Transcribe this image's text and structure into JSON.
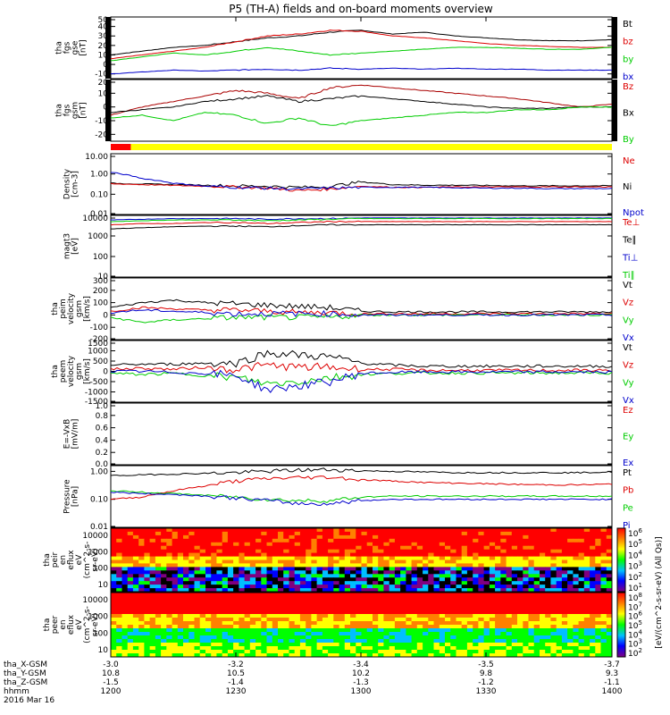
{
  "title": "P5 (TH-A) fields and on-board moments overview",
  "chart_data": [
    {
      "id": "fgs_gse",
      "type": "line",
      "ylabel": [
        "tha",
        "fgs",
        "gse",
        "[nT]"
      ],
      "yticks": [
        "50",
        "40",
        "30",
        "20",
        "10",
        "0",
        "-10"
      ],
      "ylim": [
        -15,
        50
      ],
      "legend": [
        {
          "name": "Bt",
          "color": "#000000"
        },
        {
          "name": "bz",
          "color": "#dd0000"
        },
        {
          "name": "by",
          "color": "#00cc00"
        },
        {
          "name": "bx",
          "color": "#0000cc"
        }
      ],
      "series": [
        {
          "name": "Bt",
          "color": "#000000",
          "values": [
            10,
            14,
            18,
            20,
            24,
            28,
            30,
            34,
            36,
            32,
            34,
            30,
            28,
            26,
            25,
            25,
            26
          ]
        },
        {
          "name": "bz",
          "color": "#dd0000",
          "values": [
            6,
            10,
            14,
            18,
            24,
            30,
            32,
            36,
            35,
            30,
            28,
            25,
            22,
            20,
            19,
            18,
            18
          ]
        },
        {
          "name": "by",
          "color": "#00cc00",
          "values": [
            4,
            8,
            12,
            10,
            14,
            18,
            14,
            10,
            12,
            14,
            16,
            18,
            18,
            17,
            16,
            16,
            18
          ]
        },
        {
          "name": "bx",
          "color": "#0000cc",
          "values": [
            -10,
            -8,
            -6,
            -7,
            -6,
            -5,
            -6,
            -4,
            -5,
            -4,
            -5,
            -4,
            -5,
            -5,
            -6,
            -6,
            -6
          ]
        }
      ]
    },
    {
      "id": "fgs_gsm",
      "type": "line",
      "ylabel": [
        "tha",
        "fgs",
        "gsm",
        "[nT]"
      ],
      "yticks": [
        "20",
        "10",
        "0",
        "-10",
        "-20"
      ],
      "ylim": [
        -25,
        20
      ],
      "legend": [
        {
          "name": "Bz",
          "color": "#dd0000"
        },
        {
          "name": "Bx",
          "color": "#000000"
        },
        {
          "name": "By",
          "color": "#00cc00"
        }
      ],
      "series": [
        {
          "name": "Bz",
          "color": "#aa0000",
          "values": [
            -6,
            0,
            4,
            8,
            12,
            10,
            6,
            14,
            16,
            14,
            12,
            10,
            8,
            6,
            3,
            0,
            2
          ]
        },
        {
          "name": "Bx",
          "color": "#000000",
          "values": [
            -4,
            -2,
            0,
            4,
            6,
            8,
            4,
            6,
            8,
            6,
            4,
            2,
            0,
            -1,
            -1,
            0,
            0
          ]
        },
        {
          "name": "By",
          "color": "#00cc00",
          "values": [
            -8,
            -6,
            -10,
            -4,
            -6,
            -12,
            -8,
            -14,
            -10,
            -8,
            -6,
            -4,
            -4,
            -2,
            -2,
            0,
            0
          ]
        }
      ]
    },
    {
      "id": "density",
      "type": "line",
      "yscale": "log",
      "ylabel": [
        "Density",
        "[cm-3]"
      ],
      "yticks": [
        "10.00",
        "1.00",
        "0.10",
        "0.01"
      ],
      "ylim": [
        0.01,
        10
      ],
      "legend": [
        {
          "name": "Ne",
          "color": "#dd0000"
        },
        {
          "name": "Ni",
          "color": "#000000"
        },
        {
          "name": "Npot",
          "color": "#0000cc"
        }
      ],
      "series": [
        {
          "name": "Ni",
          "color": "#000000",
          "values": [
            0.35,
            0.32,
            0.3,
            0.28,
            0.26,
            0.25,
            0.22,
            0.24,
            0.4,
            0.3,
            0.28,
            0.28,
            0.27,
            0.26,
            0.26,
            0.26,
            0.26
          ]
        },
        {
          "name": "Ne",
          "color": "#dd0000",
          "values": [
            0.33,
            0.3,
            0.27,
            0.25,
            0.23,
            0.2,
            0.15,
            0.18,
            0.25,
            0.22,
            0.22,
            0.23,
            0.23,
            0.23,
            0.23,
            0.23,
            0.23
          ]
        },
        {
          "name": "Npot",
          "color": "#0000cc",
          "values": [
            1.2,
            0.6,
            0.35,
            0.25,
            0.22,
            0.2,
            0.18,
            0.2,
            0.22,
            0.22,
            0.22,
            0.21,
            0.2,
            0.2,
            0.19,
            0.19,
            0.19
          ]
        }
      ]
    },
    {
      "id": "magt3",
      "type": "line",
      "yscale": "log",
      "ylabel": [
        "magt3",
        "[eV]"
      ],
      "yticks": [
        "10000",
        "1000",
        "100",
        "10"
      ],
      "ylim": [
        10,
        10000
      ],
      "legend": [
        {
          "name": "Te⊥",
          "color": "#dd0000"
        },
        {
          "name": "Te∥",
          "color": "#000000"
        },
        {
          "name": "Ti⊥",
          "color": "#0000cc"
        },
        {
          "name": "Ti∥",
          "color": "#00cc00"
        }
      ],
      "series": [
        {
          "name": "Ti⊥",
          "color": "#0000cc",
          "values": [
            6000,
            6500,
            7000,
            7000,
            7000,
            6500,
            7000,
            7000,
            7500,
            7500,
            7500,
            7500,
            7500,
            7500,
            7500,
            7500,
            7500
          ]
        },
        {
          "name": "Ti∥",
          "color": "#00cc00",
          "values": [
            5000,
            5500,
            6000,
            6000,
            6000,
            5500,
            6000,
            6500,
            7000,
            7000,
            7000,
            7000,
            7000,
            7000,
            7000,
            7000,
            7000
          ]
        },
        {
          "name": "Te⊥",
          "color": "#dd0000",
          "values": [
            3500,
            4000,
            4000,
            4500,
            4500,
            4000,
            4500,
            5000,
            5000,
            5000,
            5000,
            5000,
            5000,
            5000,
            5000,
            5000,
            5000
          ]
        },
        {
          "name": "Te∥",
          "color": "#000000",
          "values": [
            2200,
            2500,
            2800,
            3000,
            3000,
            2800,
            3200,
            3500,
            3500,
            3500,
            3500,
            3500,
            3500,
            3500,
            3500,
            3500,
            3500
          ]
        }
      ]
    },
    {
      "id": "peim_velocity",
      "type": "line",
      "ylabel": [
        "tha",
        "peim",
        "velocity",
        "gsm",
        "[km/s]"
      ],
      "yticks": [
        "300",
        "200",
        "100",
        "0",
        "-100",
        "-200"
      ],
      "ylim": [
        -200,
        300
      ],
      "legend": [
        {
          "name": "Vt",
          "color": "#000000"
        },
        {
          "name": "Vz",
          "color": "#dd0000"
        },
        {
          "name": "Vy",
          "color": "#00cc00"
        },
        {
          "name": "Vx",
          "color": "#0000cc"
        }
      ],
      "series": [
        {
          "name": "Vt",
          "color": "#000000",
          "values": [
            60,
            100,
            120,
            100,
            90,
            80,
            70,
            60,
            30,
            25,
            25,
            25,
            25,
            25,
            25,
            25,
            25
          ]
        },
        {
          "name": "Vz",
          "color": "#dd0000",
          "values": [
            30,
            60,
            50,
            40,
            40,
            30,
            20,
            20,
            10,
            10,
            10,
            10,
            10,
            10,
            10,
            10,
            10
          ]
        },
        {
          "name": "Vy",
          "color": "#00cc00",
          "values": [
            -20,
            -60,
            -40,
            -30,
            -20,
            -20,
            -20,
            -20,
            0,
            0,
            0,
            0,
            0,
            0,
            0,
            0,
            0
          ]
        },
        {
          "name": "Vx",
          "color": "#0000cc",
          "values": [
            20,
            40,
            30,
            20,
            10,
            10,
            10,
            10,
            0,
            0,
            0,
            0,
            0,
            0,
            0,
            0,
            0
          ]
        }
      ]
    },
    {
      "id": "peem_velocity",
      "type": "line",
      "ylabel": [
        "tha",
        "peem",
        "velocity",
        "gsm",
        "[km/s]"
      ],
      "yticks": [
        "1500",
        "1000",
        "500",
        "0",
        "-500",
        "-1000",
        "-1500"
      ],
      "ylim": [
        -1500,
        1500
      ],
      "legend": [
        {
          "name": "Vt",
          "color": "#000000"
        },
        {
          "name": "Vz",
          "color": "#dd0000"
        },
        {
          "name": "Vy",
          "color": "#00cc00"
        },
        {
          "name": "Vx",
          "color": "#0000cc"
        }
      ],
      "series": [
        {
          "name": "Vt",
          "color": "#000000",
          "values": [
            300,
            350,
            350,
            400,
            400,
            900,
            800,
            700,
            400,
            300,
            250,
            250,
            250,
            250,
            250,
            250,
            250
          ]
        },
        {
          "name": "Vz",
          "color": "#dd0000",
          "values": [
            100,
            150,
            100,
            200,
            100,
            300,
            200,
            200,
            100,
            100,
            50,
            50,
            50,
            50,
            50,
            50,
            50
          ]
        },
        {
          "name": "Vy",
          "color": "#00cc00",
          "values": [
            -100,
            -150,
            -100,
            -200,
            -300,
            -600,
            -500,
            -300,
            -150,
            -100,
            -80,
            -80,
            -80,
            -80,
            -80,
            -80,
            -80
          ]
        },
        {
          "name": "Vx",
          "color": "#0000cc",
          "values": [
            0,
            0,
            -50,
            -100,
            -200,
            -900,
            -700,
            -500,
            -100,
            -50,
            -30,
            -30,
            -30,
            -30,
            -30,
            -30,
            -30
          ]
        }
      ]
    },
    {
      "id": "efield",
      "type": "line",
      "ylabel": [
        "E=-VxB",
        "[mV/m]"
      ],
      "yticks": [
        "1.0",
        "0.8",
        "0.6",
        "0.4",
        "0.2",
        "0.0"
      ],
      "ylim": [
        0,
        1
      ],
      "legend": [
        {
          "name": "Ez",
          "color": "#dd0000"
        },
        {
          "name": "Ey",
          "color": "#00cc00"
        },
        {
          "name": "Ex",
          "color": "#0000cc"
        }
      ],
      "series": []
    },
    {
      "id": "pressure",
      "type": "line",
      "yscale": "log",
      "ylabel": [
        "Pressure",
        "[nPa]"
      ],
      "yticks": [
        "1.00",
        "0.10",
        "0.01"
      ],
      "ylim": [
        0.01,
        1.6
      ],
      "legend": [
        {
          "name": "Pt",
          "color": "#000000"
        },
        {
          "name": "Pb",
          "color": "#dd0000"
        },
        {
          "name": "Pe",
          "color": "#00cc00"
        },
        {
          "name": "Pi",
          "color": "#0000cc"
        }
      ],
      "series": [
        {
          "name": "Pt",
          "color": "#000000",
          "values": [
            0.7,
            0.75,
            0.8,
            0.85,
            0.9,
            1.0,
            1.1,
            1.15,
            1.05,
            1.0,
            0.95,
            0.9,
            0.9,
            0.9,
            0.9,
            0.9,
            0.95
          ]
        },
        {
          "name": "Pb",
          "color": "#dd0000",
          "values": [
            0.1,
            0.12,
            0.2,
            0.3,
            0.45,
            0.55,
            0.6,
            0.62,
            0.5,
            0.45,
            0.4,
            0.38,
            0.36,
            0.34,
            0.33,
            0.33,
            0.35
          ]
        },
        {
          "name": "Pe",
          "color": "#00cc00",
          "values": [
            0.2,
            0.18,
            0.16,
            0.14,
            0.12,
            0.1,
            0.09,
            0.09,
            0.12,
            0.13,
            0.13,
            0.13,
            0.13,
            0.13,
            0.13,
            0.13,
            0.13
          ]
        },
        {
          "name": "Pi",
          "color": "#0000cc",
          "values": [
            0.18,
            0.16,
            0.15,
            0.13,
            0.11,
            0.09,
            0.07,
            0.07,
            0.09,
            0.1,
            0.1,
            0.1,
            0.1,
            0.1,
            0.1,
            0.1,
            0.1
          ]
        }
      ]
    },
    {
      "id": "peir_en_eflux",
      "type": "heatmap",
      "ylabel": [
        "tha",
        "peir",
        "en",
        "eflux",
        "eV",
        "(cm^2-s-",
        "sr-eV)"
      ],
      "yticks": [
        "10000",
        "1000",
        "100",
        "10"
      ],
      "color_scale": [
        "#800080",
        "#0000ff",
        "#00bfff",
        "#00ff00",
        "#ffff00",
        "#ff8000",
        "#ff0000"
      ],
      "colorbar_ticks": [
        "10^6",
        "10^5",
        "10^4",
        "10^3",
        "10^2",
        "10^1"
      ]
    },
    {
      "id": "peer_en_eflux",
      "type": "heatmap",
      "ylabel": [
        "tha",
        "peer",
        "en",
        "eflux",
        "eV",
        "(cm^2-s-",
        "sr-eV)"
      ],
      "yticks": [
        "10000",
        "1000",
        "100",
        "10"
      ],
      "color_scale": [
        "#800080",
        "#0000ff",
        "#00bfff",
        "#00ff00",
        "#ffff00",
        "#ff8000",
        "#ff0000"
      ],
      "colorbar_ticks": [
        "10^8",
        "10^7",
        "10^6",
        "10^5",
        "10^4",
        "10^3",
        "10^2"
      ]
    }
  ],
  "colorbar_label": "[eV/(cm^2-s-sr-eV) (All Qs)]",
  "xaxis": {
    "rows": [
      {
        "name": "tha_X-GSM",
        "values": [
          "-3.0",
          "-3.2",
          "-3.4",
          "-3.5",
          "-3.7"
        ]
      },
      {
        "name": "tha_Y-GSM",
        "values": [
          "10.8",
          "10.5",
          "10.2",
          "9.8",
          "9.3"
        ]
      },
      {
        "name": "tha_Z-GSM",
        "values": [
          "-1.5",
          "-1.4",
          "-1.3",
          "-1.2",
          "-1.1"
        ]
      },
      {
        "name": "hhmm",
        "values": [
          "1200",
          "1230",
          "1300",
          "1330",
          "1400"
        ]
      }
    ],
    "date": "2016 Mar 16"
  },
  "mode_bar": {
    "segments": [
      {
        "from": 0,
        "to": 0.04,
        "color": "#ff0000"
      },
      {
        "from": 0.04,
        "to": 1,
        "color": "#ffff00"
      }
    ]
  }
}
